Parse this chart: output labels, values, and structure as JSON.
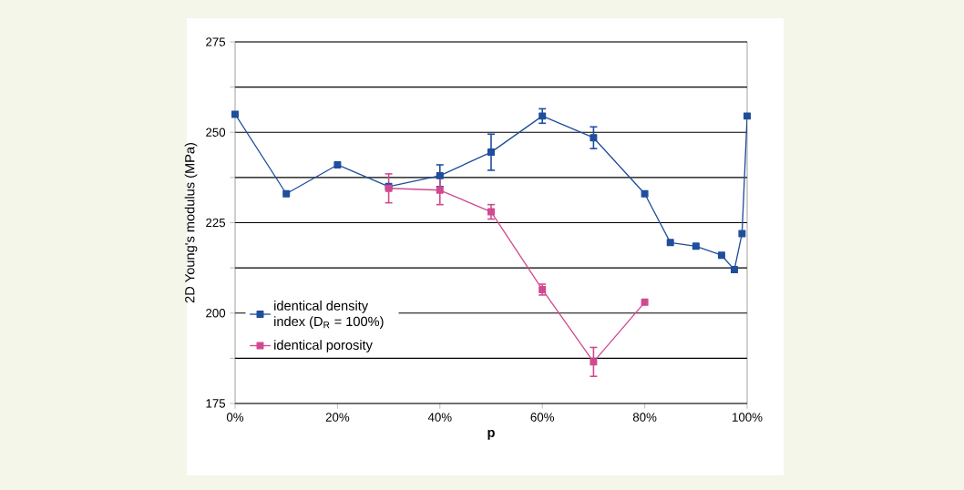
{
  "chart_data": {
    "type": "line",
    "xlabel": "p",
    "ylabel": "2D Young's modulus (MPa)",
    "xlim": [
      0,
      100
    ],
    "ylim": [
      175,
      275
    ],
    "xticks": [
      {
        "value": 0,
        "label": "0%"
      },
      {
        "value": 20,
        "label": "20%"
      },
      {
        "value": 40,
        "label": "40%"
      },
      {
        "value": 60,
        "label": "60%"
      },
      {
        "value": 80,
        "label": "80%"
      },
      {
        "value": 100,
        "label": "100%"
      }
    ],
    "yticks": [
      175,
      {
        "value": 187.5,
        "label": null
      },
      200,
      {
        "value": 212.5,
        "label": null
      },
      225,
      {
        "value": 237.5,
        "label": null
      },
      250,
      {
        "value": 262.5,
        "label": null
      },
      275
    ],
    "grid": "y",
    "legend": "bottom left",
    "marker": "square",
    "line_style": "solid",
    "series": [
      {
        "name": "identical density index (D$_{R}$ = 100%)",
        "color": "#1f4e9c",
        "x": [
          0,
          10,
          20,
          30,
          40,
          50,
          60,
          70,
          80,
          85,
          90,
          95,
          97.5,
          99,
          100
        ],
        "values": [
          255,
          233,
          241,
          235,
          238,
          244.5,
          254.5,
          248.5,
          233,
          219.5,
          218.5,
          216,
          212,
          222,
          254.5
        ],
        "errors": [
          null,
          null,
          null,
          null,
          3,
          5,
          2,
          3,
          null,
          null,
          null,
          null,
          null,
          null,
          null
        ]
      },
      {
        "name": "identical porosity",
        "color": "#d04a90",
        "x": [
          30,
          40,
          50,
          60,
          70,
          80
        ],
        "values": [
          234.5,
          234,
          228,
          206.5,
          186.5,
          203
        ],
        "errors": [
          4,
          4,
          2,
          1.5,
          4,
          null
        ]
      }
    ]
  }
}
